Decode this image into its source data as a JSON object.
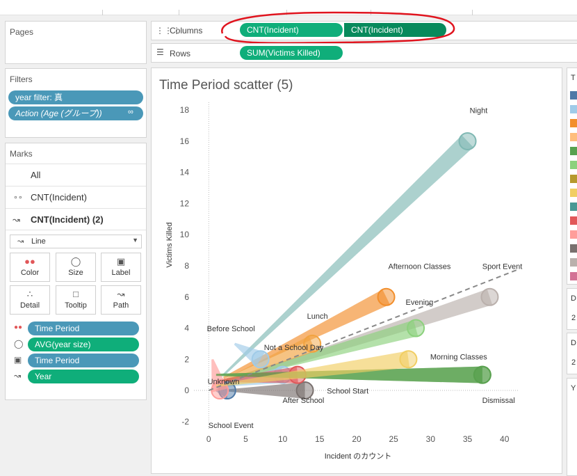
{
  "pages": {
    "title": "Pages"
  },
  "shelves": {
    "columns_label": "Columns",
    "columns_pills": [
      "CNT(Incident)",
      "CNT(Incident)"
    ],
    "rows_label": "Rows",
    "rows_pills": [
      "SUM(Victims Killed)"
    ]
  },
  "filters": {
    "title": "Filters",
    "pills": [
      "year filter: 真",
      "Action (Age (グループ))"
    ]
  },
  "marks": {
    "title": "Marks",
    "layers": [
      "All",
      "CNT(Incident)",
      "CNT(Incident) (2)"
    ],
    "mark_type": "Line",
    "buttons": [
      "Color",
      "Size",
      "Label",
      "Detail",
      "Tooltip",
      "Path"
    ],
    "encodings": [
      "Time Period",
      "AVG(year size)",
      "Time Period",
      "Year"
    ]
  },
  "legend_right": {
    "header_letter": "T",
    "d_labels": [
      "D",
      "D"
    ],
    "num_labels": [
      "2",
      "2"
    ],
    "y_label": "Y",
    "colors": [
      "#4e79a7",
      "#a0cbe8",
      "#f28e2b",
      "#ffbe7d",
      "#59a14f",
      "#8cd17d",
      "#b6992d",
      "#f1ce63",
      "#499894",
      "#e15759",
      "#ff9d9a",
      "#79706e",
      "#bab0ac",
      "#d37295"
    ]
  },
  "chart_data": {
    "type": "scatter",
    "title": "Time Period scatter (5)",
    "xlabel": "Incident のカウント",
    "ylabel": "Victims Killed",
    "xlim": [
      -2,
      42
    ],
    "ylim": [
      -2.5,
      18.5
    ],
    "x_ticks": [
      0,
      5,
      10,
      15,
      20,
      25,
      30,
      35,
      40
    ],
    "y_ticks": [
      -2,
      0,
      2,
      4,
      6,
      8,
      10,
      12,
      14,
      16,
      18
    ],
    "trend_line": {
      "x": [
        0,
        42
      ],
      "y": [
        0,
        7.8
      ]
    },
    "series": [
      {
        "name": "Night",
        "color": "#7fb8b3",
        "x": 35,
        "y": 16,
        "start_x": 2,
        "start_y": 1
      },
      {
        "name": "Sport Event",
        "color": "#bab0ac",
        "x": 38,
        "y": 6,
        "start_x": 2,
        "start_y": 0.4
      },
      {
        "name": "Afternoon Classes",
        "color": "#f28e2b",
        "x": 24,
        "y": 6,
        "start_x": 2,
        "start_y": 0.8
      },
      {
        "name": "Evening",
        "color": "#8cd17d",
        "x": 28,
        "y": 4,
        "start_x": 2,
        "start_y": 0.6
      },
      {
        "name": "Lunch",
        "color": "#f1a340",
        "x": 14,
        "y": 3,
        "start_x": 1.5,
        "start_y": 0.5
      },
      {
        "name": "Before School",
        "color": "#a0cbe8",
        "x": 7,
        "y": 2,
        "start_x": 3.5,
        "start_y": 3
      },
      {
        "name": "Not a School Day",
        "color": "#a0cbe8",
        "x": 10,
        "y": 1,
        "start_x": 2,
        "start_y": 0.3
      },
      {
        "name": "Morning Classes",
        "color": "#59a14f",
        "x": 37,
        "y": 1,
        "start_x": 1,
        "start_y": 1
      },
      {
        "name": "School Start",
        "color": "#79706e",
        "x": 13,
        "y": 0,
        "start_x": 2.5,
        "start_y": 0
      },
      {
        "name": "After School",
        "color": "#e15759",
        "x": 12,
        "y": 1,
        "start_x": 1,
        "start_y": 0.6
      },
      {
        "name": "Unknown",
        "color": "#4e79a7",
        "x": 2.5,
        "y": 0,
        "start_x": 1,
        "start_y": 0
      },
      {
        "name": "School Event",
        "color": "#ff9d9a",
        "x": 1.5,
        "y": 0,
        "start_x": 0.5,
        "start_y": 2
      },
      {
        "name": "Dismissal",
        "color": "#59a14f",
        "x": 37,
        "y": 1,
        "start_x": 1,
        "start_y": 1
      },
      {
        "name": "Morning Classes (yellow)",
        "color": "#f1ce63",
        "x": 27,
        "y": 2,
        "start_x": 1,
        "start_y": 0.3
      }
    ],
    "labels": [
      {
        "text": "Night",
        "x": 36.5,
        "y": 17.8
      },
      {
        "text": "Sport Event",
        "x": 39.7,
        "y": 7.8
      },
      {
        "text": "Afternoon Classes",
        "x": 28.5,
        "y": 7.8
      },
      {
        "text": "Evening",
        "x": 28.5,
        "y": 5.5
      },
      {
        "text": "Lunch",
        "x": 14.7,
        "y": 4.6
      },
      {
        "text": "Before School",
        "x": 3,
        "y": 3.8
      },
      {
        "text": "Not a School Day",
        "x": 11.5,
        "y": 2.6
      },
      {
        "text": "Morning Classes",
        "x": 33.8,
        "y": 2
      },
      {
        "text": "Unknown",
        "x": 2,
        "y": 0.4
      },
      {
        "text": "After School",
        "x": 12.8,
        "y": -0.8
      },
      {
        "text": "School Start",
        "x": 18.8,
        "y": -0.2
      },
      {
        "text": "School Event",
        "x": 3,
        "y": -2.4
      },
      {
        "text": "Dismissal",
        "x": 39.2,
        "y": -0.8
      }
    ]
  }
}
